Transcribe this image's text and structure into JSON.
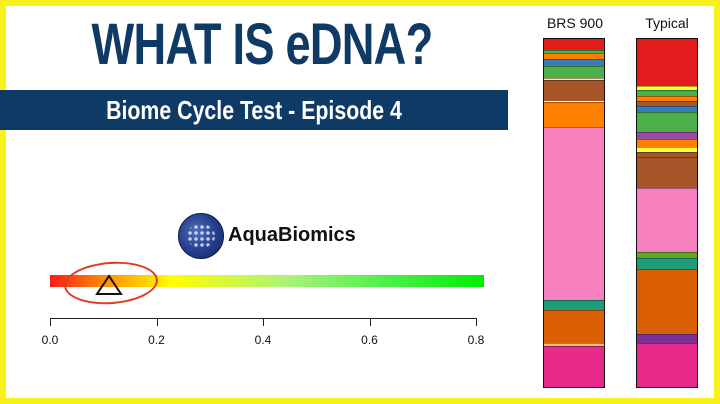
{
  "header": {
    "title": "WHAT IS eDNA?",
    "subtitle": "Biome Cycle Test - Episode 4"
  },
  "brand": {
    "name": "AquaBiomics",
    "logo_icon": "dna-globe-logo-icon"
  },
  "gauge": {
    "marker_value": 0.11,
    "marker_icon": "triangle-marker-icon",
    "highlight": "red-ring",
    "tick_labels": [
      "0.0",
      "0.2",
      "0.4",
      "0.6",
      "0.8"
    ],
    "ticks": [
      0.0,
      0.2,
      0.4,
      0.6,
      0.8
    ],
    "range": [
      0.0,
      0.8
    ],
    "gradient_colors": [
      "#ff1a1a",
      "#ff8800",
      "#ffff00",
      "#aaf27a",
      "#00ee00"
    ]
  },
  "chart_data": {
    "type": "bar",
    "stacked": true,
    "categories": [
      "BRS 900",
      "Typical"
    ],
    "series_values": [
      [
        {
          "value": 0.03,
          "color": "#e41a1c"
        },
        {
          "value": 0.01,
          "color": "#4daf4a"
        },
        {
          "value": 0.015,
          "color": "#ff7f00"
        },
        {
          "value": 0.02,
          "color": "#377eb8"
        },
        {
          "value": 0.035,
          "color": "#4daf4a"
        },
        {
          "value": 0.005,
          "color": "#f0e6b0"
        },
        {
          "value": 0.06,
          "color": "#a65628"
        },
        {
          "value": 0.07,
          "color": "#ff7f00"
        },
        {
          "value": 0.485,
          "color": "#f781bf"
        },
        {
          "value": 0.03,
          "color": "#1b9e77"
        },
        {
          "value": 0.09,
          "color": "#d95f02"
        },
        {
          "value": 0.01,
          "color": "#fdbf6f"
        },
        {
          "value": 0.12,
          "color": "#e7298a"
        }
      ],
      [
        {
          "value": 0.13,
          "color": "#e41a1c"
        },
        {
          "value": 0.01,
          "color": "#ffff33"
        },
        {
          "value": 0.015,
          "color": "#4daf4a"
        },
        {
          "value": 0.015,
          "color": "#ff7f00"
        },
        {
          "value": 0.015,
          "color": "#a65628"
        },
        {
          "value": 0.015,
          "color": "#377eb8"
        },
        {
          "value": 0.055,
          "color": "#4daf4a"
        },
        {
          "value": 0.02,
          "color": "#984ea3"
        },
        {
          "value": 0.02,
          "color": "#ff7f00"
        },
        {
          "value": 0.015,
          "color": "#ffff33"
        },
        {
          "value": 0.015,
          "color": "#a65628"
        },
        {
          "value": 0.085,
          "color": "#a65628"
        },
        {
          "value": 0.175,
          "color": "#f781bf"
        },
        {
          "value": 0.015,
          "color": "#66a61e"
        },
        {
          "value": 0.03,
          "color": "#1b9e77"
        },
        {
          "value": 0.18,
          "color": "#d95f02"
        },
        {
          "value": 0.025,
          "color": "#7b3294"
        },
        {
          "value": 0.125,
          "color": "#e7298a"
        }
      ]
    ]
  }
}
